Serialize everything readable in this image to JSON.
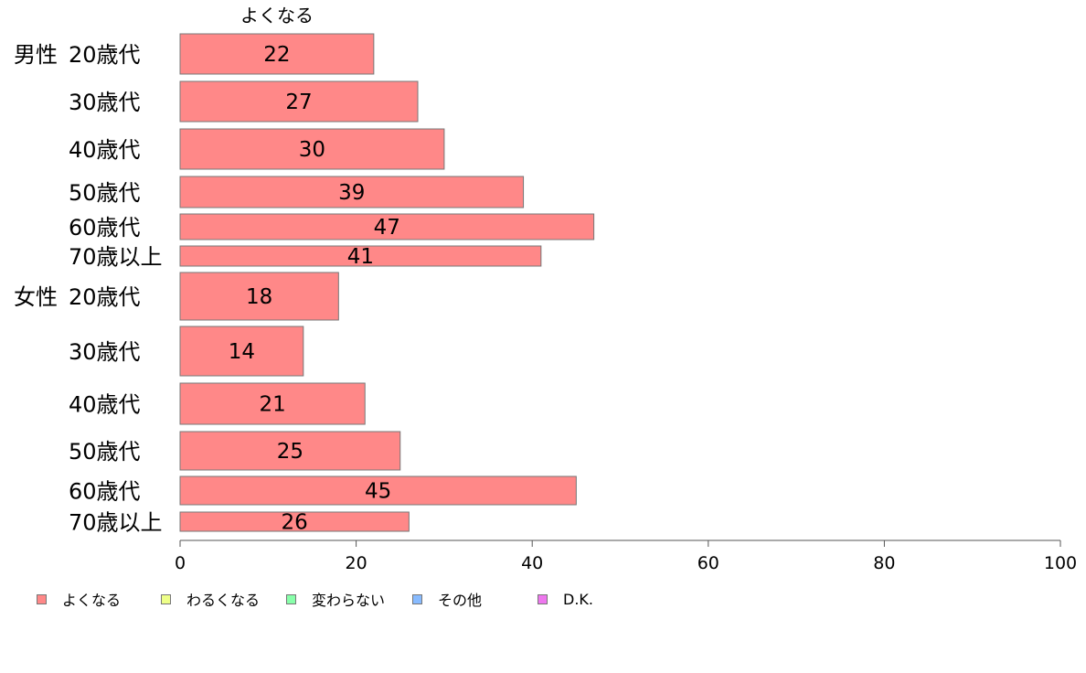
{
  "chart_data": {
    "type": "bar",
    "orientation": "horizontal",
    "series_header": "よくなる",
    "groups": [
      {
        "label": "男性",
        "categories": [
          "20歳代",
          "30歳代",
          "40歳代",
          "50歳代",
          "60歳代",
          "70歳以上"
        ],
        "values": [
          22,
          27,
          30,
          39,
          47,
          41
        ]
      },
      {
        "label": "女性",
        "categories": [
          "20歳代",
          "30歳代",
          "40歳代",
          "50歳代",
          "60歳代",
          "70歳以上"
        ],
        "values": [
          18,
          14,
          21,
          25,
          45,
          26
        ]
      }
    ],
    "xlim": [
      0,
      100
    ],
    "xticks": [
      0,
      20,
      40,
      60,
      80,
      100
    ],
    "grid": false,
    "legend_placement": "bottom-left",
    "legend": [
      {
        "label": "よくなる",
        "color": "#ff8888"
      },
      {
        "label": "わるくなる",
        "color": "#eeff88"
      },
      {
        "label": "変わらない",
        "color": "#88ffaa"
      },
      {
        "label": "その他",
        "color": "#88bbff"
      },
      {
        "label": "D.K.",
        "color": "#ee77ee"
      }
    ],
    "bar_color": "#ff8888"
  }
}
